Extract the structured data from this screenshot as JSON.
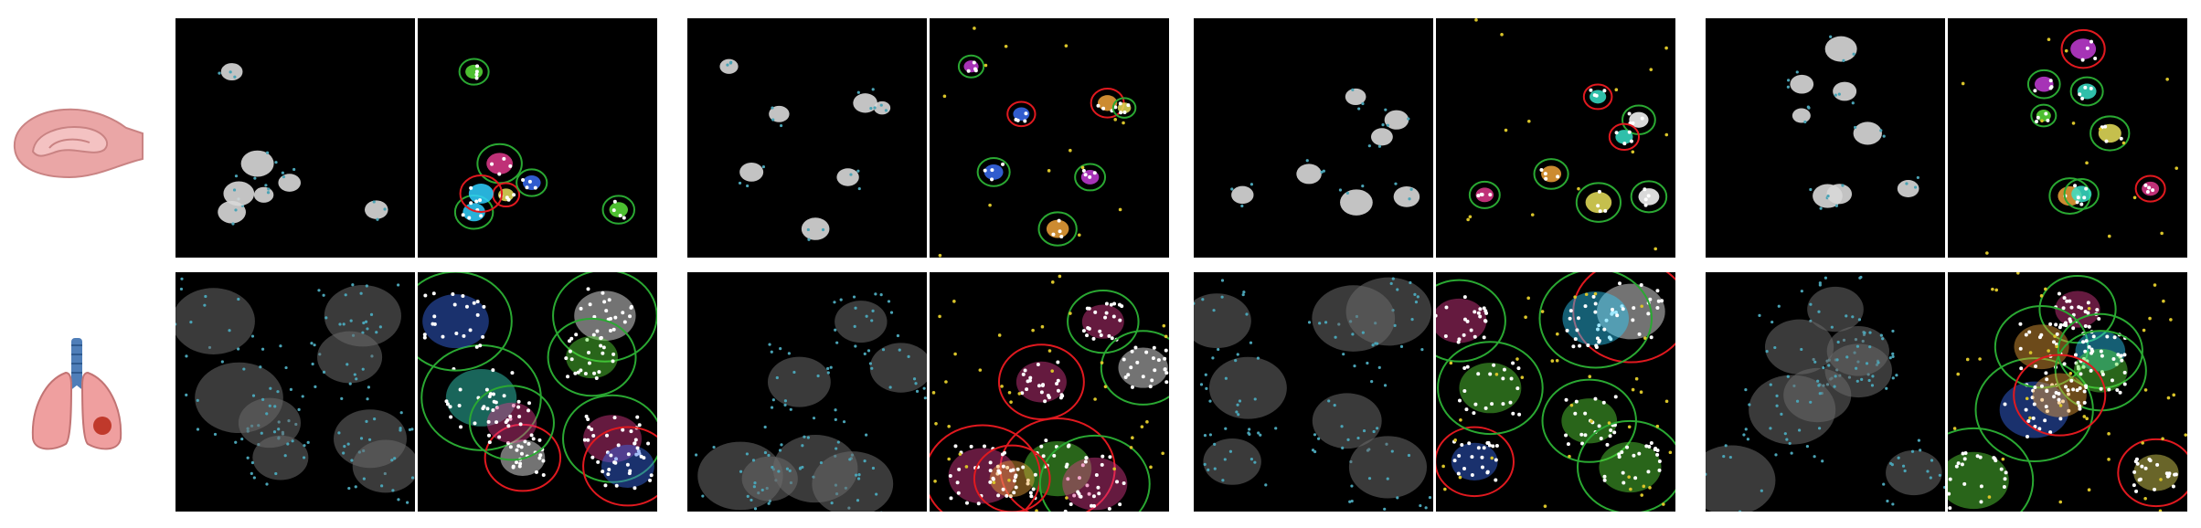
{
  "figure": {
    "tissues": [
      {
        "name": "brain",
        "icon": "brain-section-icon",
        "colors": {
          "fill": "#eaa6a6",
          "stroke": "#c98383"
        }
      },
      {
        "name": "lung",
        "icon": "lungs-icon",
        "colors": {
          "fill": "#ef9f9f",
          "stroke": "#c27474",
          "trachea": "#4f7eb8",
          "lesion": "#c0392b"
        }
      }
    ],
    "groups": 4,
    "panel_types": [
      "raw-nuclei-with-transcript-spots",
      "segmentation-overlay"
    ],
    "colors": {
      "background": "#000000",
      "transcript_spot": "#4aa3b5",
      "cell_boundary_accepted": "#2aa832",
      "cell_boundary_rejected": "#e0191f",
      "assigned_transcript": "#ffffff",
      "unassigned_transcript": "#d9c42a"
    }
  }
}
